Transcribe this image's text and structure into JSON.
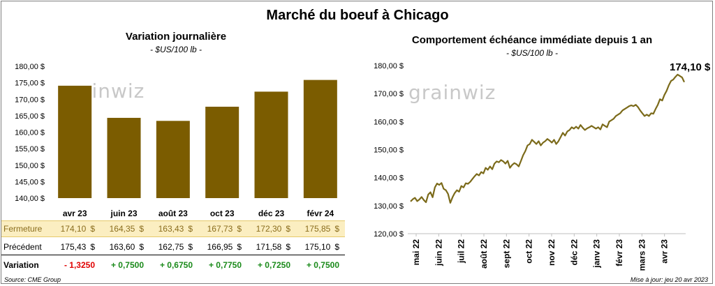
{
  "main_title": "Marché du boeuf à Chicago",
  "left": {
    "title": "Variation journalière",
    "units": "- $US/100 lb -",
    "watermark": "grainwiz"
  },
  "right": {
    "title": "Comportement échéance immédiate depuis 1 an",
    "units": "- $US/100 lb -",
    "last_value_label": "174,10 $",
    "watermark": "grainwiz"
  },
  "table": {
    "rows": [
      {
        "label": "Fermeture",
        "values": [
          "174,10",
          "164,35",
          "163,43",
          "167,73",
          "172,30",
          "175,85"
        ]
      },
      {
        "label": "Précédent",
        "values": [
          "175,43",
          "163,60",
          "162,75",
          "166,95",
          "171,58",
          "175,10"
        ]
      },
      {
        "label": "Variation",
        "values": [
          "- 1,3250",
          "+ 0,7500",
          "+ 0,6750",
          "+ 0,7750",
          "+ 0,7250",
          "+ 0,7500"
        ]
      }
    ],
    "dollar_sign": "$"
  },
  "source": "Source: CME Group",
  "updated": "Mise à jour: jeu 20 avr 2023",
  "colors": {
    "bar": "#7b5c00",
    "line": "#7b6a1a",
    "fermeture_bg": "#fbeec1",
    "negative": "#e00000",
    "positive": "#1a8a1a"
  },
  "chart_data": [
    {
      "type": "bar",
      "title": "Variation journalière",
      "subtitle": "- $US/100 lb -",
      "categories": [
        "avr 23",
        "juin 23",
        "août 23",
        "oct 23",
        "déc 23",
        "févr 24"
      ],
      "values": [
        174.1,
        164.35,
        163.43,
        167.73,
        172.3,
        175.85
      ],
      "ylim": [
        140,
        180
      ],
      "yticks": [
        140,
        145,
        150,
        155,
        160,
        165,
        170,
        175,
        180
      ],
      "ytick_labels": [
        "140,00 $",
        "145,00 $",
        "150,00 $",
        "155,00 $",
        "160,00 $",
        "165,00 $",
        "170,00 $",
        "175,00 $",
        "180,00 $"
      ],
      "grid": false
    },
    {
      "type": "line",
      "title": "Comportement échéance immédiate depuis 1 an",
      "subtitle": "- $US/100 lb -",
      "x_tick_labels": [
        "mai 22",
        "juin 22",
        "juil 22",
        "août 22",
        "sept 22",
        "oct 22",
        "nov 22",
        "déc 22",
        "janv 23",
        "févr 23",
        "mars 23",
        "avr 23"
      ],
      "ylim": [
        120,
        180
      ],
      "yticks": [
        120,
        130,
        140,
        150,
        160,
        170,
        180
      ],
      "ytick_labels": [
        "120,00 $",
        "130,00 $",
        "140,00 $",
        "150,00 $",
        "160,00 $",
        "170,00 $",
        "180,00 $"
      ],
      "last_value": 174.1,
      "series": [
        {
          "values": [
            131.5,
            132.3,
            132.8,
            131.6,
            132.2,
            133.1,
            132.0,
            131.2,
            134.0,
            134.8,
            133.0,
            136.5,
            137.9,
            137.4,
            138.1,
            136.0,
            135.5,
            134.2,
            131.0,
            133.0,
            134.5,
            135.5,
            135.0,
            137.0,
            136.5,
            138.0,
            137.8,
            138.5,
            139.5,
            140.5,
            141.3,
            140.8,
            142.0,
            141.5,
            143.5,
            142.8,
            144.0,
            143.0,
            145.0,
            145.8,
            145.5,
            146.3,
            145.8,
            145.0,
            146.0,
            143.5,
            144.5,
            145.2,
            144.8,
            144.0,
            146.0,
            148.0,
            149.5,
            151.5,
            152.0,
            153.5,
            152.8,
            152.0,
            153.0,
            151.5,
            152.5,
            153.0,
            153.8,
            153.2,
            152.5,
            153.5,
            152.0,
            153.0,
            154.5,
            156.0,
            155.0,
            156.5,
            157.0,
            158.0,
            157.5,
            158.2,
            157.5,
            158.8,
            157.8,
            157.0,
            157.6,
            158.0,
            158.5,
            158.0,
            157.5,
            158.0,
            157.2,
            159.0,
            158.5,
            158.0,
            160.0,
            160.5,
            161.0,
            162.0,
            162.5,
            163.0,
            164.0,
            164.5,
            165.0,
            165.5,
            165.8,
            165.5,
            166.0,
            165.2,
            164.0,
            163.0,
            162.0,
            162.5,
            162.0,
            163.0,
            162.8,
            164.5,
            166.0,
            168.0,
            167.5,
            169.5,
            171.0,
            173.0,
            174.5,
            175.0,
            176.0,
            176.8,
            176.3,
            175.8,
            174.1
          ]
        }
      ]
    }
  ]
}
